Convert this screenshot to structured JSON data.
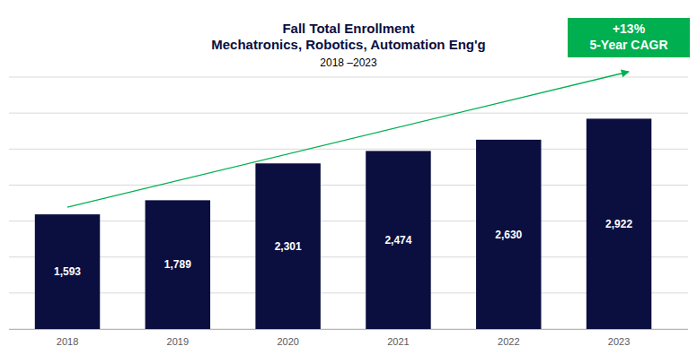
{
  "chart_data": {
    "type": "bar",
    "title": [
      "Fall Total Enrollment",
      "Mechatronics, Robotics, Automation Eng'g"
    ],
    "subtitle": "2018 –2023",
    "categories": [
      "2018",
      "2019",
      "2020",
      "2021",
      "2022",
      "2023"
    ],
    "values": [
      1593,
      1789,
      2301,
      2474,
      2630,
      2922
    ],
    "value_labels": [
      "1,593",
      "1,789",
      "2,301",
      "2,474",
      "2,630",
      "2,922"
    ],
    "color": "#0b0f3f",
    "ylim": [
      0,
      3500
    ],
    "yticks": [
      0,
      500,
      1000,
      1500,
      2000,
      2500,
      3000,
      3500
    ],
    "grid": true,
    "tick_labels": "x",
    "data_labels": true,
    "annotations": [
      "+13%",
      "5-Year CAGR"
    ]
  }
}
